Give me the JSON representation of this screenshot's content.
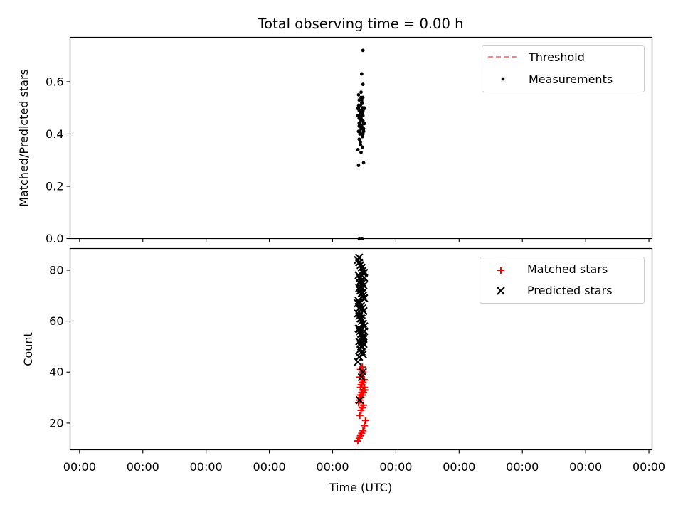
{
  "title": "Total observing time = 0.00 h",
  "chart_data": [
    {
      "type": "scatter",
      "ylabel": "Matched/Predicted stars",
      "ylim": [
        0,
        0.77
      ],
      "yticks": [
        0.0,
        0.2,
        0.4,
        0.6
      ],
      "ytick_labels": [
        "0.0",
        "0.2",
        "0.4",
        "0.6"
      ],
      "legend": {
        "position": "top-right"
      },
      "series": [
        {
          "name": "Threshold",
          "kind": "line",
          "color": "#ff8080",
          "style": "dashed",
          "values": []
        },
        {
          "name": "Measurements",
          "kind": "scatter",
          "marker": "dot",
          "color": "#000000",
          "x": [
            4.4,
            4.43,
            4.46,
            4.48,
            4.41,
            4.44,
            4.47,
            4.5,
            4.42,
            4.45,
            4.49,
            4.43,
            4.46,
            4.41,
            4.48,
            4.44,
            4.47,
            4.42,
            4.45,
            4.5,
            4.43,
            4.46,
            4.49,
            4.41,
            4.44,
            4.47,
            4.42,
            4.45,
            4.48,
            4.43,
            4.46,
            4.4,
            4.44,
            4.47,
            4.42,
            4.45,
            4.49,
            4.43,
            4.46,
            4.41,
            4.48,
            4.44,
            4.47,
            4.42,
            4.45,
            4.49,
            4.43,
            4.46,
            4.41,
            4.48,
            4.44,
            4.47,
            4.42,
            4.45,
            4.48,
            4.43,
            4.46,
            4.49,
            4.44,
            4.47,
            4.42,
            4.45,
            4.48,
            4.43,
            4.46,
            4.5,
            4.44,
            4.47,
            4.42,
            4.45,
            4.48,
            4.46,
            4.48,
            4.4,
            4.44,
            4.47,
            4.45,
            4.41,
            4.49,
            4.44,
            4.47,
            4.42,
            4.45,
            4.48,
            4.41,
            4.46,
            4.5,
            4.43,
            4.47,
            4.42,
            4.46
          ],
          "y": [
            0.5,
            0.49,
            0.48,
            0.5,
            0.47,
            0.46,
            0.45,
            0.44,
            0.43,
            0.42,
            0.41,
            0.4,
            0.52,
            0.51,
            0.49,
            0.48,
            0.47,
            0.46,
            0.45,
            0.44,
            0.43,
            0.42,
            0.41,
            0.47,
            0.46,
            0.45,
            0.44,
            0.43,
            0.42,
            0.49,
            0.48,
            0.47,
            0.46,
            0.45,
            0.44,
            0.43,
            0.42,
            0.41,
            0.4,
            0.5,
            0.49,
            0.48,
            0.47,
            0.46,
            0.45,
            0.44,
            0.43,
            0.42,
            0.41,
            0.4,
            0.49,
            0.48,
            0.47,
            0.46,
            0.45,
            0.44,
            0.43,
            0.42,
            0.51,
            0.5,
            0.49,
            0.48,
            0.47,
            0.46,
            0.45,
            0.44,
            0.43,
            0.52,
            0.53,
            0.56,
            0.59,
            0.63,
            0.72,
            0.34,
            0.36,
            0.35,
            0.33,
            0.28,
            0.29,
            0.37,
            0.39,
            0.38,
            0.54,
            0.54,
            0.55,
            0.53,
            0.5,
            0.0,
            0.0,
            0.0,
            0.0
          ]
        }
      ]
    },
    {
      "type": "scatter",
      "xlabel": "Time (UTC)",
      "ylabel": "Count",
      "ylim": [
        9.5,
        88.5
      ],
      "yticks": [
        20,
        40,
        60,
        80
      ],
      "ytick_labels": [
        "20",
        "40",
        "60",
        "80"
      ],
      "xticks": [
        0,
        1,
        2,
        3,
        4,
        5,
        6,
        7,
        8,
        9
      ],
      "xtick_labels": [
        "00:00",
        "00:00",
        "00:00",
        "00:00",
        "00:00",
        "00:00",
        "00:00",
        "00:00",
        "00:00",
        "00:00"
      ],
      "xlim": [
        -0.15,
        9.05
      ],
      "legend": {
        "position": "top-right"
      },
      "series": [
        {
          "name": "Matched stars",
          "kind": "scatter",
          "marker": "plus",
          "color": "#ff0000",
          "x": [
            4.4,
            4.42,
            4.44,
            4.46,
            4.48,
            4.5,
            4.52,
            4.43,
            4.45,
            4.47,
            4.49,
            4.41,
            4.43,
            4.45,
            4.47,
            4.49,
            4.51,
            4.44,
            4.46,
            4.48,
            4.5,
            4.42,
            4.44,
            4.46,
            4.48,
            4.5,
            4.45,
            4.47,
            4.49,
            4.43,
            4.46,
            4.48,
            4.44,
            4.47
          ],
          "y": [
            13,
            14,
            15,
            16,
            17,
            19,
            21,
            23,
            25,
            26,
            27,
            28,
            29,
            30,
            31,
            32,
            33,
            34,
            35,
            36,
            37,
            30,
            31,
            32,
            33,
            34,
            35,
            36,
            37,
            38,
            39,
            40,
            41,
            42
          ]
        },
        {
          "name": "Predicted stars",
          "kind": "scatter",
          "marker": "x",
          "color": "#000000",
          "x": [
            4.4,
            4.42,
            4.44,
            4.46,
            4.48,
            4.5,
            4.41,
            4.43,
            4.45,
            4.47,
            4.49,
            4.42,
            4.44,
            4.46,
            4.48,
            4.5,
            4.41,
            4.43,
            4.45,
            4.47,
            4.49,
            4.4,
            4.42,
            4.44,
            4.46,
            4.48,
            4.5,
            4.41,
            4.43,
            4.45,
            4.47,
            4.49,
            4.42,
            4.44,
            4.46,
            4.48,
            4.5,
            4.43,
            4.45,
            4.47,
            4.49,
            4.4,
            4.42,
            4.44,
            4.46,
            4.48,
            4.43,
            4.45,
            4.47,
            4.49,
            4.44,
            4.46,
            4.48,
            4.42,
            4.45,
            4.47,
            4.49,
            4.5,
            4.48,
            4.4,
            4.46,
            4.43,
            4.42
          ],
          "y": [
            84,
            83,
            82,
            81,
            80,
            79,
            78,
            77,
            76,
            75,
            74,
            73,
            72,
            71,
            70,
            69,
            68,
            67,
            66,
            65,
            64,
            63,
            62,
            61,
            60,
            59,
            58,
            57,
            56,
            55,
            54,
            53,
            52,
            51,
            50,
            79,
            77,
            75,
            73,
            71,
            69,
            67,
            65,
            63,
            61,
            59,
            57,
            55,
            53,
            51,
            49,
            48,
            47,
            46,
            50,
            52,
            54,
            56,
            40,
            44,
            38,
            29,
            85
          ]
        }
      ]
    }
  ]
}
